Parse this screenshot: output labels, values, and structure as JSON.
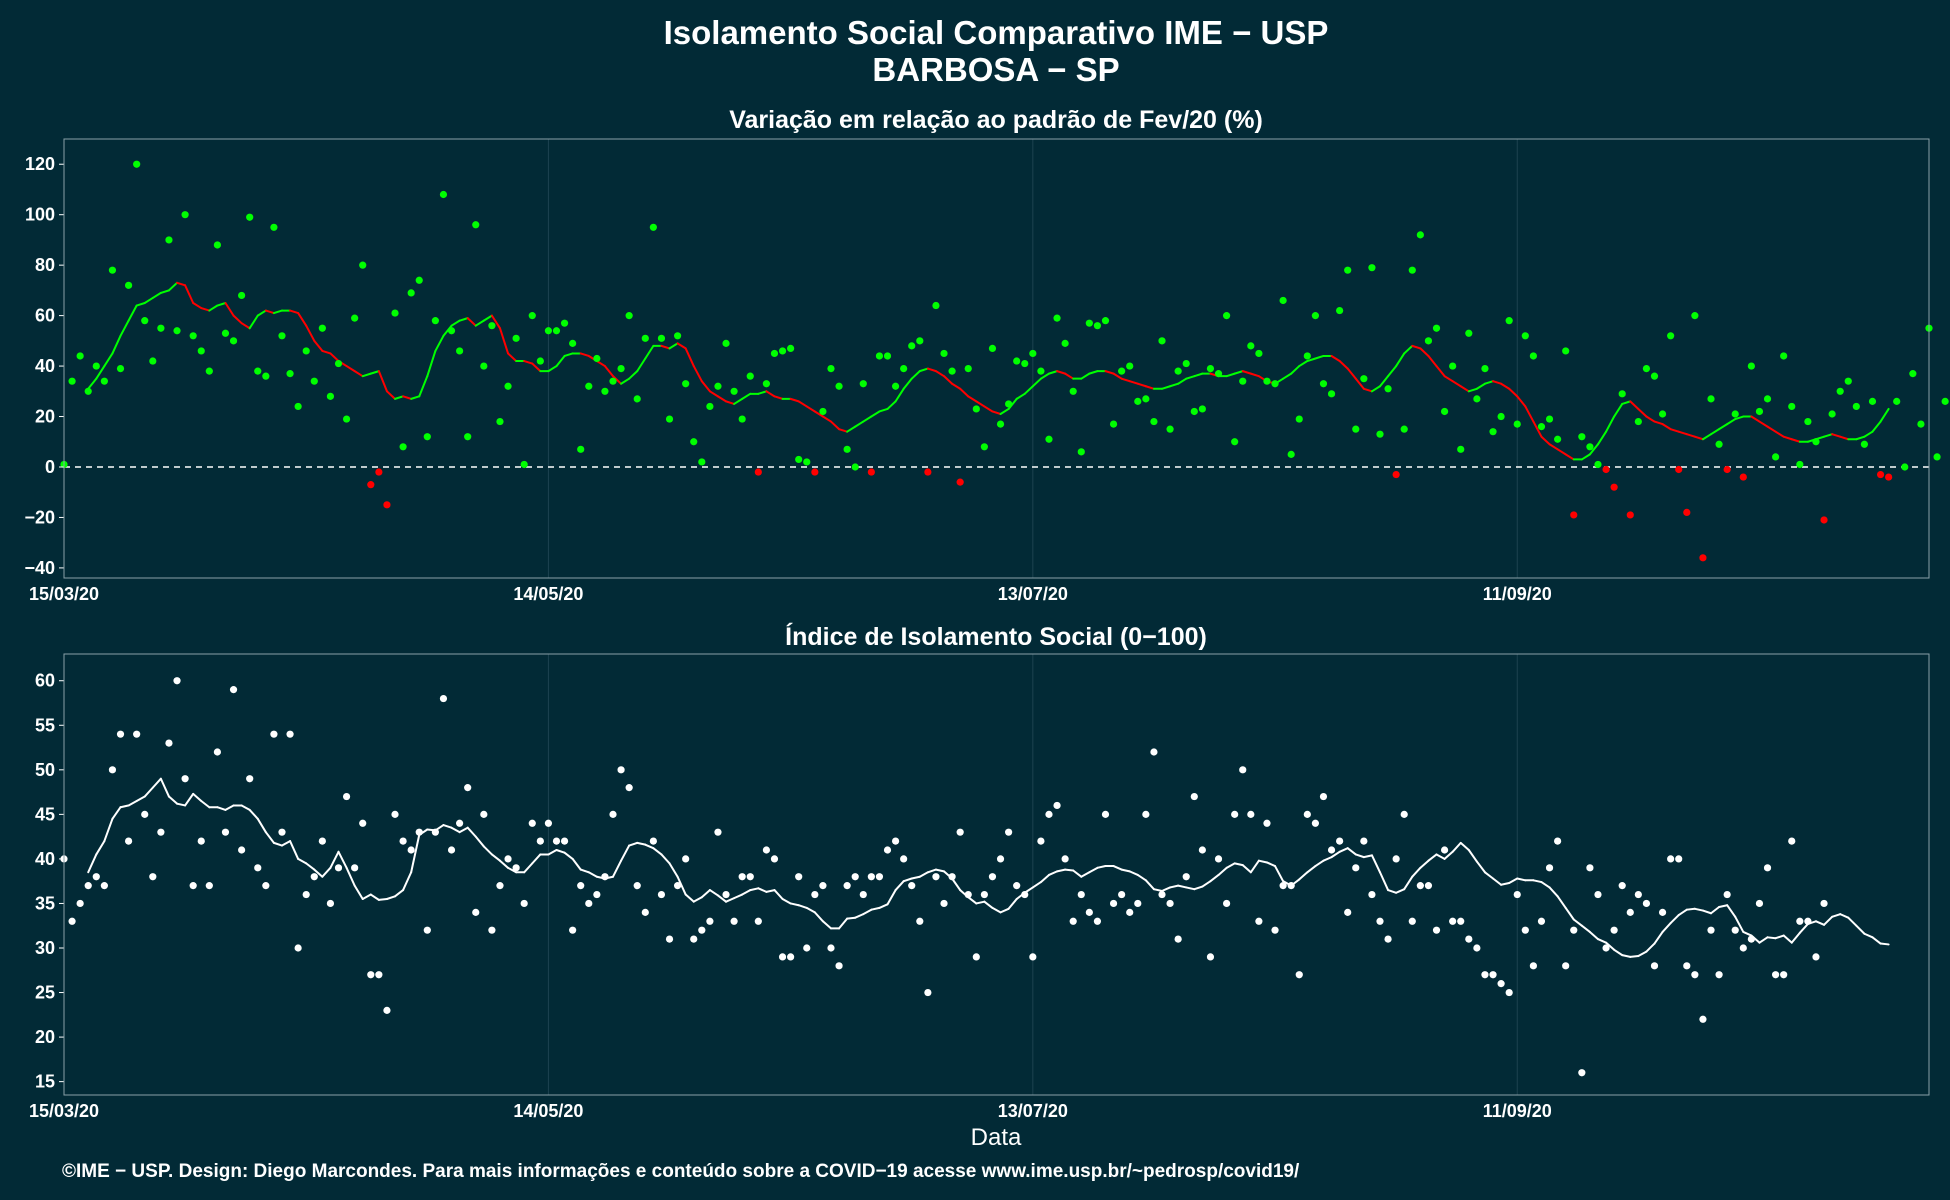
{
  "header": {
    "title_line1": "Isolamento Social Comparativo IME − USP",
    "title_line2": "BARBOSA − SP"
  },
  "footer": {
    "credit": "©IME − USP. Design: Diego Marcondes. Para mais informações e conteúdo sobre a COVID−19 acesse www.ime.usp.br/~pedrosp/covid19/"
  },
  "colors": {
    "background": "#022a36",
    "panel_border": "#8aa0a8",
    "grid": "#1d4350",
    "positive": "#00ff00",
    "negative": "#ff0000",
    "index": "#ffffff",
    "zero_line": "#ffffff"
  },
  "chart_data": [
    {
      "type": "scatter",
      "title": "Variação em relação ao padrão de Fev/20 (%)",
      "xlabel": "",
      "ylabel": "",
      "x_ticks": [
        "15/03/20",
        "14/05/20",
        "13/07/20",
        "11/09/20"
      ],
      "x_tick_days": [
        0,
        60,
        120,
        180
      ],
      "x_range_days": [
        0,
        231
      ],
      "ylim": [
        -44,
        130
      ],
      "y_ticks": [
        -40,
        -20,
        0,
        20,
        40,
        60,
        80,
        100,
        120
      ],
      "reference_line": 0,
      "grid": true,
      "legend": "none",
      "series": [
        {
          "kind": "points",
          "values": [
            1,
            34,
            44,
            30,
            40,
            34,
            78,
            39,
            72,
            120,
            58,
            42,
            55,
            90,
            54,
            100,
            52,
            46,
            38,
            88,
            53,
            50,
            68,
            99,
            38,
            36,
            95,
            52,
            37,
            24,
            46,
            34,
            55,
            28,
            41,
            19,
            59,
            80,
            -7,
            -2,
            -15,
            61,
            8,
            69,
            74,
            12,
            58,
            108,
            54,
            46,
            12,
            96,
            40,
            56,
            18,
            32,
            51,
            1,
            60,
            42,
            54,
            54,
            57,
            49,
            7,
            32,
            43,
            30,
            34,
            39,
            60,
            27,
            51,
            95,
            51,
            19,
            52,
            33,
            10,
            2,
            24,
            32,
            49,
            30,
            19,
            36,
            -2,
            33,
            45,
            46,
            47,
            3,
            2,
            -2,
            22,
            39,
            32,
            7,
            0,
            33,
            -2,
            44,
            44,
            32,
            39,
            48,
            50,
            -2,
            64,
            45,
            38,
            -6,
            39,
            23,
            8,
            47,
            17,
            25,
            42,
            41,
            45,
            38,
            11,
            59,
            49,
            30,
            6,
            57,
            56,
            58,
            17,
            38,
            40,
            26,
            27,
            18,
            50,
            15,
            38,
            41,
            22,
            23,
            39,
            37,
            60,
            10,
            34,
            48,
            45,
            34,
            33,
            66,
            5,
            19,
            44,
            60,
            33,
            29,
            62,
            78,
            15,
            35,
            79,
            13,
            31,
            -3,
            15,
            78,
            92,
            50,
            55,
            22,
            40,
            7,
            53,
            27,
            39,
            14,
            20,
            58,
            17,
            52,
            44,
            16,
            19,
            11,
            46,
            -19,
            12,
            8,
            1,
            -1,
            -8,
            29,
            -19,
            18,
            39,
            36,
            21,
            52,
            -1,
            -18,
            60,
            -36,
            27,
            9,
            -1,
            21,
            -4,
            40,
            22,
            27,
            4,
            44,
            24,
            1,
            18,
            10,
            -21,
            21,
            30,
            34,
            24,
            9,
            26,
            -3,
            -4,
            26,
            0,
            37,
            17,
            55,
            4,
            26
          ]
        },
        {
          "kind": "moving_average",
          "start_index": 3,
          "values": [
            31,
            35,
            40,
            45,
            52,
            58,
            64,
            65,
            67,
            69,
            70,
            73,
            72,
            65,
            63,
            62,
            64,
            65,
            60,
            57,
            55,
            60,
            62,
            61,
            62,
            62,
            61,
            56,
            50,
            46,
            45,
            42,
            40,
            38,
            36,
            37,
            38,
            30,
            27,
            28,
            27,
            28,
            36,
            46,
            52,
            56,
            58,
            59,
            56,
            58,
            60,
            55,
            45,
            42,
            42,
            41,
            38,
            38,
            40,
            44,
            45,
            45,
            44,
            42,
            40,
            36,
            33,
            35,
            38,
            43,
            48,
            48,
            47,
            49,
            47,
            40,
            34,
            30,
            28,
            26,
            25,
            27,
            29,
            29,
            30,
            28,
            27,
            27,
            26,
            24,
            22,
            20,
            18,
            15,
            14,
            16,
            18,
            20,
            22,
            23,
            26,
            31,
            35,
            38,
            39,
            38,
            36,
            33,
            31,
            28,
            26,
            24,
            22,
            21,
            23,
            27,
            29,
            32,
            35,
            37,
            38,
            37,
            35,
            35,
            37,
            38,
            38,
            37,
            35,
            34,
            33,
            32,
            31,
            31,
            32,
            33,
            35,
            36,
            37,
            37,
            36,
            36,
            37,
            38,
            37,
            36,
            34,
            33,
            35,
            37,
            40,
            42,
            43,
            44,
            44,
            42,
            39,
            35,
            31,
            30,
            32,
            36,
            40,
            45,
            48,
            47,
            44,
            40,
            36,
            34,
            32,
            30,
            31,
            33,
            34,
            33,
            31,
            28,
            24,
            18,
            12,
            9,
            7,
            5,
            3,
            3,
            5,
            9,
            14,
            20,
            25,
            26,
            23,
            20,
            18,
            17,
            15,
            14,
            13,
            12,
            11,
            13,
            15,
            17,
            19,
            20,
            20,
            18,
            16,
            14,
            12,
            11,
            10,
            10,
            11,
            12,
            13,
            12,
            11,
            11,
            12,
            14,
            18,
            23
          ]
        }
      ]
    },
    {
      "type": "scatter",
      "title": "Índice de Isolamento Social (0−100)",
      "xlabel": "Data",
      "ylabel": "",
      "x_ticks": [
        "15/03/20",
        "14/05/20",
        "13/07/20",
        "11/09/20"
      ],
      "x_tick_days": [
        0,
        60,
        120,
        180
      ],
      "x_range_days": [
        0,
        231
      ],
      "ylim": [
        13.5,
        63
      ],
      "y_ticks": [
        15,
        20,
        25,
        30,
        35,
        40,
        45,
        50,
        55,
        60
      ],
      "grid": true,
      "legend": "none",
      "series": [
        {
          "kind": "points",
          "values": [
            40,
            33,
            35,
            37,
            38,
            37,
            50,
            54,
            42,
            54,
            45,
            38,
            43,
            53,
            60,
            49,
            37,
            42,
            37,
            52,
            43,
            59,
            41,
            49,
            39,
            37,
            54,
            43,
            54,
            30,
            36,
            38,
            42,
            35,
            39,
            47,
            39,
            44,
            27,
            27,
            23,
            45,
            42,
            41,
            43,
            32,
            43,
            58,
            41,
            44,
            48,
            34,
            45,
            32,
            37,
            40,
            39,
            35,
            44,
            42,
            44,
            42,
            42,
            32,
            37,
            35,
            36,
            38,
            45,
            50,
            48,
            37,
            34,
            42,
            36,
            31,
            37,
            40,
            31,
            32,
            33,
            43,
            36,
            33,
            38,
            38,
            33,
            41,
            40,
            29,
            29,
            38,
            30,
            36,
            37,
            30,
            28,
            37,
            38,
            36,
            38,
            38,
            41,
            42,
            40,
            37,
            33,
            25,
            38,
            35,
            38,
            43,
            36,
            29,
            36,
            38,
            40,
            43,
            37,
            36,
            29,
            42,
            45,
            46,
            40,
            33,
            36,
            34,
            33,
            45,
            35,
            36,
            34,
            35,
            45,
            52,
            36,
            35,
            31,
            38,
            47,
            41,
            29,
            40,
            35,
            45,
            50,
            45,
            33,
            44,
            32,
            37,
            37,
            27,
            45,
            44,
            47,
            41,
            42,
            34,
            39,
            42,
            36,
            33,
            31,
            40,
            45,
            33,
            37,
            37,
            32,
            41,
            33,
            33,
            31,
            30,
            27,
            27,
            26,
            25,
            36,
            32,
            28,
            33,
            39,
            42,
            28,
            32,
            16,
            39,
            36,
            30,
            32,
            37,
            34,
            36,
            35,
            28,
            34,
            40,
            40,
            28,
            27,
            22,
            32,
            27,
            36,
            32,
            30,
            31,
            35,
            39,
            27,
            27,
            42,
            33,
            33,
            29,
            35
          ]
        },
        {
          "kind": "moving_average",
          "start_index": 3,
          "values": [
            38.5,
            40.5,
            42,
            44.5,
            45.8,
            46,
            46.5,
            47,
            48,
            49,
            47,
            46.2,
            46,
            47.3,
            46.5,
            45.8,
            45.8,
            45.5,
            46,
            46,
            45.5,
            44.5,
            43,
            41.8,
            41.5,
            42,
            40,
            39.5,
            38.8,
            38,
            39,
            40.8,
            39,
            37,
            35.5,
            36,
            35.4,
            35.5,
            35.8,
            36.5,
            38.5,
            42.7,
            43.3,
            43.2,
            43.8,
            43.5,
            43,
            43.5,
            42.5,
            41.4,
            40.5,
            39.8,
            39,
            38.5,
            38.5,
            39.5,
            40.5,
            40.5,
            41,
            40.7,
            40,
            38.8,
            38.5,
            38,
            37.8,
            38,
            39.8,
            41.5,
            41.8,
            41.6,
            41.2,
            40.5,
            39.5,
            38,
            36,
            35.2,
            35.7,
            36.5,
            35.9,
            35.2,
            35.6,
            36,
            36.5,
            36.7,
            36.3,
            36.5,
            35.5,
            35,
            34.8,
            34.5,
            34,
            33,
            32.2,
            32.2,
            33.3,
            33.4,
            33.8,
            34.3,
            34.5,
            34.9,
            36.5,
            37.5,
            37.8,
            38,
            38.5,
            38.8,
            38.6,
            37.8,
            36.5,
            35.7,
            35,
            35.2,
            34.5,
            34,
            34.4,
            35.5,
            36.2,
            36.8,
            37.4,
            38.2,
            38.6,
            38.8,
            38.7,
            38,
            38.5,
            39,
            39.2,
            39.2,
            38.8,
            38.6,
            38.2,
            37.6,
            36.6,
            36.4,
            36.8,
            37,
            36.8,
            36.6,
            36.9,
            37.5,
            38.2,
            39,
            39.5,
            39.3,
            38.5,
            39.8,
            39.6,
            39.2,
            37.5,
            37,
            37.7,
            38.5,
            39.2,
            39.8,
            40.2,
            40.8,
            41.2,
            40.5,
            40.2,
            40.4,
            38.5,
            36.5,
            36.2,
            36.6,
            38,
            39,
            39.8,
            40.5,
            40,
            40.8,
            41.8,
            41,
            39.7,
            38.5,
            37.8,
            37.1,
            37.3,
            37.8,
            37.6,
            37.6,
            37.4,
            36.8,
            35.8,
            34.5,
            33.2,
            32.5,
            31.8,
            31,
            30.6,
            29.8,
            29.2,
            29,
            29.1,
            29.6,
            30.5,
            31.8,
            32.8,
            33.7,
            34.3,
            34.4,
            34.2,
            33.9,
            34.6,
            34.8,
            33.5,
            31.8,
            31.4,
            30.6,
            31.2,
            31.1,
            31.4,
            30.6,
            31.7,
            32.7,
            33,
            32.6,
            33.5,
            33.8,
            33.4,
            32.5,
            31.6,
            31.2,
            30.5,
            30.4
          ]
        }
      ]
    }
  ]
}
